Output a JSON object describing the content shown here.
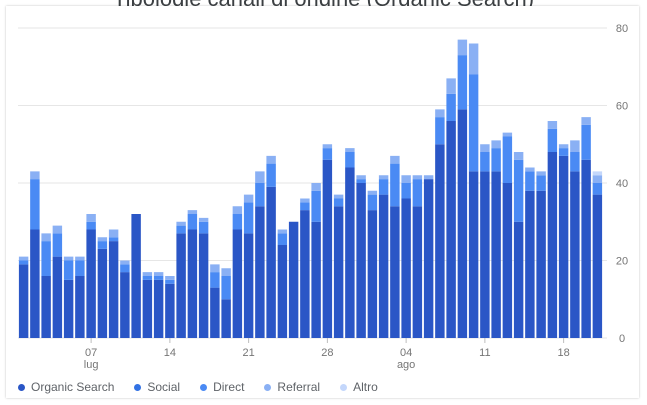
{
  "title": "Tipologie canali di origine (Organic Search)",
  "colors": {
    "organic": "#2a56c6",
    "social": "#3272e4",
    "direct": "#4a8af4",
    "referral": "#8ab0f4",
    "altro": "#c4d7fb",
    "grid": "#e6e6e6",
    "axis_text": "#757575"
  },
  "chart_data": {
    "type": "bar",
    "stacked": true,
    "yticks": [
      0,
      20,
      40,
      60,
      80
    ],
    "ylim": [
      0,
      80
    ],
    "grid": true,
    "legend_position": "bottom-left",
    "x_tick_labels": [
      {
        "index": 6,
        "label": "07",
        "sub": "lug"
      },
      {
        "index": 13,
        "label": "14",
        "sub": ""
      },
      {
        "index": 20,
        "label": "21",
        "sub": ""
      },
      {
        "index": 27,
        "label": "28",
        "sub": ""
      },
      {
        "index": 34,
        "label": "04",
        "sub": "ago"
      },
      {
        "index": 41,
        "label": "11",
        "sub": ""
      },
      {
        "index": 48,
        "label": "18",
        "sub": ""
      }
    ],
    "series": [
      {
        "name": "Organic Search",
        "values": [
          19,
          28,
          16,
          21,
          15,
          16,
          28,
          23,
          25,
          17,
          32,
          15,
          15,
          14,
          27,
          28,
          27,
          13,
          10,
          28,
          27,
          34,
          39,
          24,
          30,
          33,
          30,
          46,
          34,
          44,
          40,
          33,
          37,
          34,
          36,
          34,
          41,
          50,
          56,
          59,
          43,
          43,
          43,
          40,
          30,
          38,
          38,
          48,
          47,
          43,
          46,
          37
        ]
      },
      {
        "name": "Social",
        "values": [
          0,
          0,
          0,
          0,
          0,
          0,
          0,
          0,
          0,
          0,
          0,
          0,
          0,
          0,
          0,
          0,
          0,
          0,
          0,
          0,
          0,
          0,
          0,
          0,
          0,
          0,
          0,
          0,
          0,
          0,
          0,
          0,
          0,
          0,
          0,
          0,
          0,
          0,
          0,
          0,
          0,
          0,
          0,
          0,
          0,
          0,
          0,
          0,
          0,
          0,
          0,
          0
        ]
      },
      {
        "name": "Direct",
        "values": [
          1,
          13,
          9,
          6,
          5,
          4,
          2,
          2,
          1,
          2,
          0,
          1,
          1,
          1,
          2,
          4,
          3,
          4,
          6,
          4,
          8,
          6,
          6,
          3,
          0,
          2,
          8,
          3,
          2,
          4,
          1,
          4,
          4,
          11,
          4,
          7,
          0,
          7,
          7,
          14,
          25,
          5,
          6,
          12,
          16,
          5,
          4,
          6,
          2,
          5,
          9,
          3
        ]
      },
      {
        "name": "Referral",
        "values": [
          1,
          2,
          2,
          2,
          1,
          1,
          2,
          1,
          2,
          1,
          0,
          1,
          1,
          1,
          1,
          1,
          1,
          2,
          2,
          2,
          2,
          3,
          2,
          1,
          0,
          1,
          2,
          1,
          1,
          1,
          1,
          1,
          1,
          2,
          2,
          1,
          1,
          2,
          4,
          4,
          8,
          2,
          2,
          1,
          2,
          1,
          1,
          2,
          1,
          3,
          2,
          2
        ]
      },
      {
        "name": "Altro",
        "values": [
          0,
          0,
          0,
          0,
          0,
          0,
          0,
          0,
          0,
          0,
          0,
          0,
          0,
          0,
          0,
          0,
          0,
          0,
          0,
          0,
          0,
          0,
          0,
          0,
          0,
          0,
          0,
          0,
          0,
          0,
          0,
          0,
          0,
          0,
          0,
          0,
          0,
          0,
          0,
          0,
          0,
          0,
          0,
          0,
          0,
          0,
          0,
          0,
          0,
          0,
          0,
          1
        ]
      }
    ]
  },
  "legend": [
    {
      "label": "Organic Search",
      "color": "#2a56c6"
    },
    {
      "label": "Social",
      "color": "#3272e4"
    },
    {
      "label": "Direct",
      "color": "#4a8af4"
    },
    {
      "label": "Referral",
      "color": "#8ab0f4"
    },
    {
      "label": "Altro",
      "color": "#c4d7fb"
    }
  ]
}
